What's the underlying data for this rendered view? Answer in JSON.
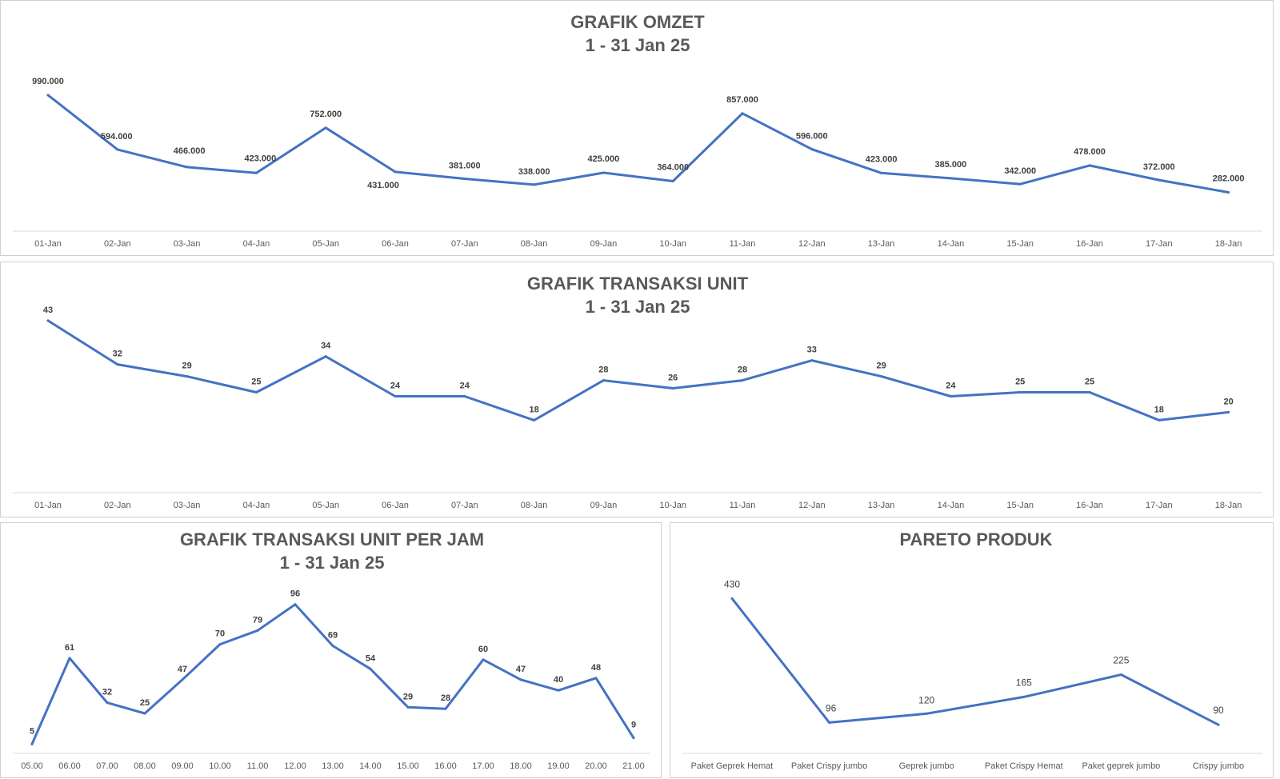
{
  "chart_data": [
    {
      "type": "line",
      "title": "GRAFIK OMZET",
      "subtitle": "1 - 31 Jan 25",
      "categories": [
        "01-Jan",
        "02-Jan",
        "03-Jan",
        "04-Jan",
        "05-Jan",
        "06-Jan",
        "07-Jan",
        "08-Jan",
        "09-Jan",
        "10-Jan",
        "11-Jan",
        "12-Jan",
        "13-Jan",
        "14-Jan",
        "15-Jan",
        "16-Jan",
        "17-Jan",
        "18-Jan"
      ],
      "values": [
        990000,
        594000,
        466000,
        423000,
        752000,
        431000,
        381000,
        338000,
        425000,
        364000,
        857000,
        596000,
        423000,
        385000,
        342000,
        478000,
        372000,
        282000
      ],
      "labels": [
        "990.000",
        "594.000",
        "466.000",
        "423.000",
        "752.000",
        "431.000",
        "381.000",
        "338.000",
        "425.000",
        "364.000",
        "857.000",
        "596.000",
        "423.000",
        "385.000",
        "342.000",
        "478.000",
        "372.000",
        "282.000"
      ],
      "ylim": [
        0,
        1100000
      ],
      "grid": false,
      "color": "#4472c4"
    },
    {
      "type": "line",
      "title": "GRAFIK TRANSAKSI UNIT",
      "subtitle": "1 - 31 Jan 25",
      "categories": [
        "01-Jan",
        "02-Jan",
        "03-Jan",
        "04-Jan",
        "05-Jan",
        "06-Jan",
        "07-Jan",
        "08-Jan",
        "09-Jan",
        "10-Jan",
        "11-Jan",
        "12-Jan",
        "13-Jan",
        "14-Jan",
        "15-Jan",
        "16-Jan",
        "17-Jan",
        "18-Jan"
      ],
      "values": [
        43,
        32,
        29,
        25,
        34,
        24,
        24,
        18,
        28,
        26,
        28,
        33,
        29,
        24,
        25,
        25,
        18,
        20
      ],
      "labels": [
        "43",
        "32",
        "29",
        "25",
        "34",
        "24",
        "24",
        "18",
        "28",
        "26",
        "28",
        "33",
        "29",
        "24",
        "25",
        "25",
        "18",
        "20"
      ],
      "ylim": [
        0,
        50
      ],
      "grid": false,
      "color": "#4472c4"
    },
    {
      "type": "line",
      "title": "GRAFIK TRANSAKSI UNIT PER JAM",
      "subtitle": "1 - 31 Jan 25",
      "categories": [
        "05.00",
        "06.00",
        "07.00",
        "08.00",
        "09.00",
        "10.00",
        "11.00",
        "12.00",
        "13.00",
        "14.00",
        "15.00",
        "16.00",
        "17.00",
        "18.00",
        "19.00",
        "20.00",
        "21.00"
      ],
      "values": [
        5,
        61,
        32,
        25,
        47,
        70,
        79,
        96,
        69,
        54,
        29,
        28,
        60,
        47,
        40,
        48,
        9
      ],
      "labels": [
        "5",
        "61",
        "32",
        "25",
        "47",
        "70",
        "79",
        "96",
        "69",
        "54",
        "29",
        "28",
        "60",
        "47",
        "40",
        "48",
        "9"
      ],
      "ylim": [
        0,
        100
      ],
      "grid": false,
      "color": "#4472c4"
    },
    {
      "type": "line",
      "title": "PARETO PRODUK",
      "subtitle": "",
      "categories": [
        "Paket Geprek Hemat",
        "Paket Crispy jumbo",
        "Geprek jumbo",
        "Paket Crispy Hemat",
        "Paket geprek jumbo",
        "Crispy jumbo"
      ],
      "values": [
        430,
        96,
        120,
        165,
        225,
        90
      ],
      "labels": [
        "430",
        "96",
        "120",
        "165",
        "225",
        "90"
      ],
      "ylim": [
        0,
        450
      ],
      "grid": false,
      "color": "#4472c4"
    }
  ]
}
